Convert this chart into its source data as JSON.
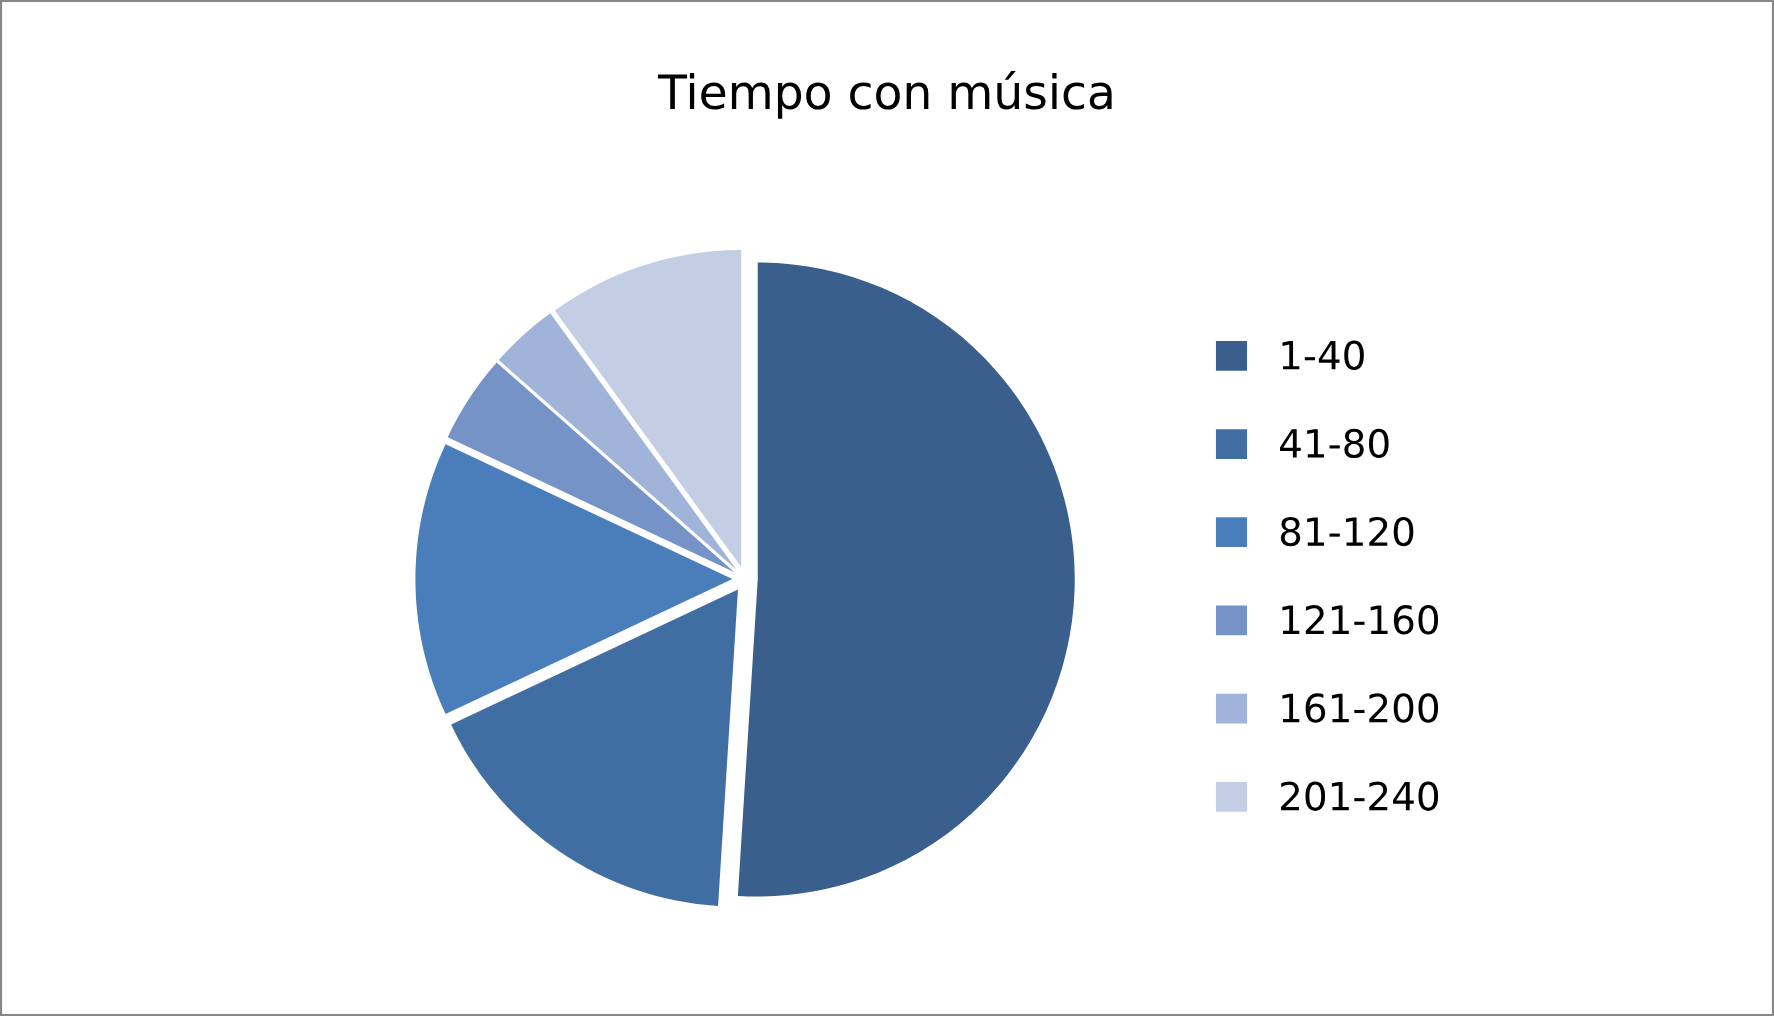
{
  "chart_data": {
    "type": "pie",
    "title": "Tiempo con música",
    "categories": [
      "1-40",
      "41-80",
      "81-120",
      "121-160",
      "161-200",
      "201-240"
    ],
    "values": [
      51,
      17,
      14,
      4.5,
      3.5,
      10
    ],
    "colors": [
      "#3a5f8c",
      "#416ea2",
      "#4a7ebb",
      "#7593c7",
      "#a0b3d8",
      "#c3cde3"
    ],
    "legend": "right"
  }
}
